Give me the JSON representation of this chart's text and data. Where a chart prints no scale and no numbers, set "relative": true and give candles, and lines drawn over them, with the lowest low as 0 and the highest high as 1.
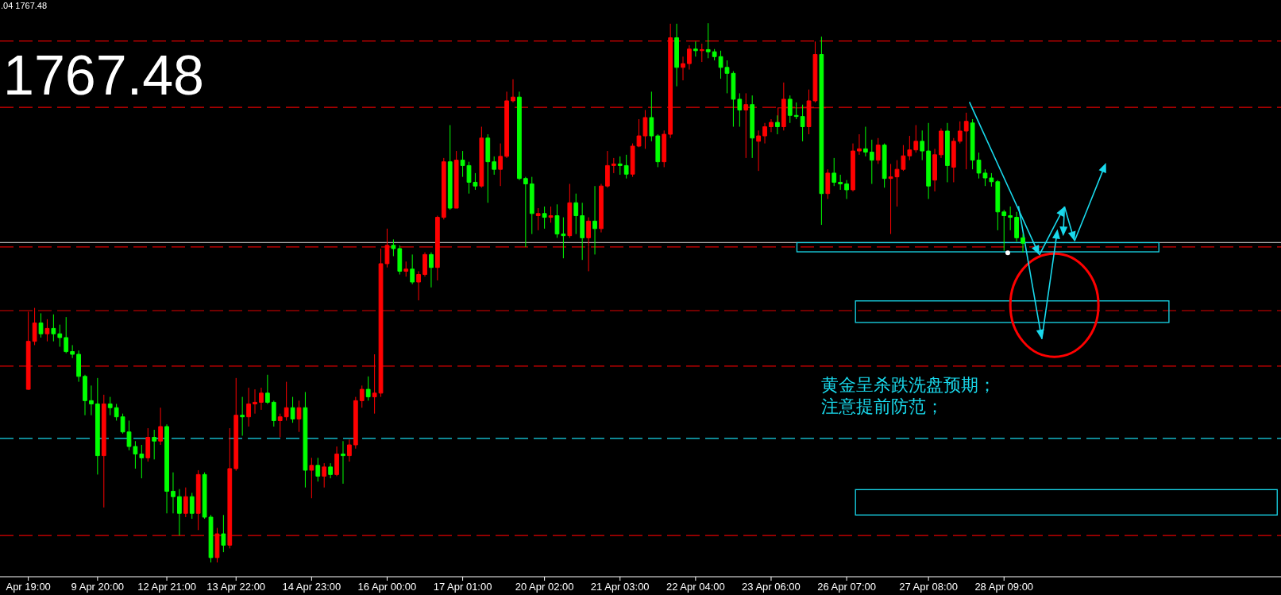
{
  "chart_data": {
    "type": "candlestick",
    "relative": true,
    "categories": [
      "Apr 19:00",
      null,
      null,
      null,
      null,
      null,
      null,
      null,
      null,
      null,
      null,
      "9 Apr 20:00",
      null,
      null,
      null,
      null,
      null,
      null,
      null,
      null,
      null,
      null,
      "12 Apr 21:00",
      null,
      null,
      null,
      null,
      null,
      null,
      null,
      null,
      null,
      null,
      "13 Apr 22:00",
      null,
      null,
      null,
      null,
      null,
      null,
      null,
      null,
      null,
      null,
      null,
      "14 Apr 23:00",
      null,
      null,
      null,
      null,
      null,
      null,
      null,
      null,
      null,
      null,
      null,
      "16 Apr 00:00",
      null,
      null,
      null,
      null,
      null,
      null,
      null,
      null,
      null,
      null,
      null,
      "17 Apr 01:00",
      null,
      null,
      null,
      null,
      null,
      null,
      null,
      null,
      null,
      null,
      null,
      null,
      "20 Apr 02:00",
      null,
      null,
      null,
      null,
      null,
      null,
      null,
      null,
      null,
      null,
      null,
      "21 Apr 03:00",
      null,
      null,
      null,
      null,
      null,
      null,
      null,
      null,
      null,
      null,
      null,
      "22 Apr 04:00",
      null,
      null,
      null,
      null,
      null,
      null,
      null,
      null,
      null,
      null,
      null,
      "23 Apr 06:00",
      null,
      null,
      null,
      null,
      null,
      null,
      null,
      null,
      null,
      null,
      null,
      "26 Apr 07:00",
      null,
      null,
      null,
      null,
      null,
      null,
      null,
      null,
      null,
      null,
      null,
      null,
      "27 Apr 08:00",
      null,
      null,
      null,
      null,
      null,
      null,
      null,
      null,
      null,
      null,
      null,
      "28 Apr 09:00",
      null,
      null,
      null
    ],
    "ohlc": [
      [
        0.321,
        0.465,
        0.32,
        0.41
      ],
      [
        0.41,
        0.472,
        0.403,
        0.444
      ],
      [
        0.444,
        0.462,
        0.417,
        0.424
      ],
      [
        0.424,
        0.451,
        0.41,
        0.434
      ],
      [
        0.434,
        0.46,
        0.41,
        0.424
      ],
      [
        0.424,
        0.441,
        0.4,
        0.417
      ],
      [
        0.417,
        0.455,
        0.388,
        0.391
      ],
      [
        0.391,
        0.403,
        0.379,
        0.386
      ],
      [
        0.386,
        0.393,
        0.335,
        0.345
      ],
      [
        0.345,
        0.348,
        0.273,
        0.3
      ],
      [
        0.3,
        0.328,
        0.273,
        0.294
      ],
      [
        0.294,
        0.342,
        0.163,
        0.198
      ],
      [
        0.198,
        0.311,
        0.102,
        0.294
      ],
      [
        0.294,
        0.307,
        0.273,
        0.287
      ],
      [
        0.287,
        0.294,
        0.263,
        0.27
      ],
      [
        0.27,
        0.276,
        0.239,
        0.242
      ],
      [
        0.242,
        0.263,
        0.208,
        0.215
      ],
      [
        0.215,
        0.225,
        0.174,
        0.201
      ],
      [
        0.201,
        0.218,
        0.156,
        0.194
      ],
      [
        0.194,
        0.249,
        0.187,
        0.232
      ],
      [
        0.232,
        0.246,
        0.191,
        0.225
      ],
      [
        0.225,
        0.287,
        0.218,
        0.252
      ],
      [
        0.252,
        0.256,
        0.091,
        0.132
      ],
      [
        0.132,
        0.167,
        0.091,
        0.122
      ],
      [
        0.122,
        0.136,
        0.05,
        0.091
      ],
      [
        0.091,
        0.139,
        0.084,
        0.122
      ],
      [
        0.122,
        0.129,
        0.081,
        0.091
      ],
      [
        0.091,
        0.171,
        0.06,
        0.163
      ],
      [
        0.163,
        0.167,
        0.081,
        0.084
      ],
      [
        0.084,
        0.088,
        0.0,
        0.009
      ],
      [
        0.009,
        0.064,
        0.0,
        0.053
      ],
      [
        0.053,
        0.088,
        0.019,
        0.032
      ],
      [
        0.032,
        0.249,
        0.026,
        0.174
      ],
      [
        0.174,
        0.342,
        0.17,
        0.273
      ],
      [
        0.273,
        0.307,
        0.235,
        0.27
      ],
      [
        0.27,
        0.324,
        0.252,
        0.294
      ],
      [
        0.294,
        0.321,
        0.276,
        0.297
      ],
      [
        0.297,
        0.324,
        0.283,
        0.314
      ],
      [
        0.314,
        0.348,
        0.294,
        0.297
      ],
      [
        0.297,
        0.3,
        0.252,
        0.263
      ],
      [
        0.263,
        0.276,
        0.232,
        0.27
      ],
      [
        0.27,
        0.335,
        0.263,
        0.287
      ],
      [
        0.287,
        0.307,
        0.259,
        0.266
      ],
      [
        0.266,
        0.3,
        0.242,
        0.287
      ],
      [
        0.287,
        0.316,
        0.139,
        0.171
      ],
      [
        0.171,
        0.194,
        0.119,
        0.18
      ],
      [
        0.18,
        0.194,
        0.15,
        0.16
      ],
      [
        0.16,
        0.184,
        0.139,
        0.177
      ],
      [
        0.177,
        0.184,
        0.156,
        0.163
      ],
      [
        0.163,
        0.215,
        0.16,
        0.201
      ],
      [
        0.201,
        0.225,
        0.146,
        0.198
      ],
      [
        0.198,
        0.228,
        0.187,
        0.218
      ],
      [
        0.218,
        0.307,
        0.211,
        0.3
      ],
      [
        0.3,
        0.328,
        0.287,
        0.321
      ],
      [
        0.321,
        0.345,
        0.3,
        0.307
      ],
      [
        0.307,
        0.386,
        0.276,
        0.314
      ],
      [
        0.314,
        0.582,
        0.307,
        0.554
      ],
      [
        0.554,
        0.619,
        0.547,
        0.588
      ],
      [
        0.588,
        0.599,
        0.568,
        0.582
      ],
      [
        0.582,
        0.588,
        0.534,
        0.54
      ],
      [
        0.54,
        0.558,
        0.53,
        0.544
      ],
      [
        0.544,
        0.571,
        0.516,
        0.52
      ],
      [
        0.52,
        0.54,
        0.486,
        0.534
      ],
      [
        0.534,
        0.575,
        0.53,
        0.571
      ],
      [
        0.571,
        0.575,
        0.51,
        0.547
      ],
      [
        0.547,
        0.643,
        0.523,
        0.64
      ],
      [
        0.64,
        0.75,
        0.636,
        0.743
      ],
      [
        0.743,
        0.811,
        0.654,
        0.657
      ],
      [
        0.657,
        0.763,
        0.657,
        0.746
      ],
      [
        0.746,
        0.763,
        0.715,
        0.736
      ],
      [
        0.736,
        0.743,
        0.684,
        0.705
      ],
      [
        0.705,
        0.722,
        0.691,
        0.698
      ],
      [
        0.698,
        0.808,
        0.695,
        0.787
      ],
      [
        0.787,
        0.794,
        0.667,
        0.743
      ],
      [
        0.743,
        0.753,
        0.719,
        0.729
      ],
      [
        0.729,
        0.777,
        0.698,
        0.753
      ],
      [
        0.753,
        0.873,
        0.75,
        0.856
      ],
      [
        0.856,
        0.896,
        0.853,
        0.863
      ],
      [
        0.863,
        0.873,
        0.709,
        0.712
      ],
      [
        0.712,
        0.715,
        0.585,
        0.702
      ],
      [
        0.702,
        0.715,
        0.609,
        0.647
      ],
      [
        0.643,
        0.657,
        0.616,
        0.647
      ],
      [
        0.647,
        0.66,
        0.619,
        0.64
      ],
      [
        0.64,
        0.66,
        0.63,
        0.643
      ],
      [
        0.643,
        0.664,
        0.602,
        0.609
      ],
      [
        0.609,
        0.64,
        0.564,
        0.606
      ],
      [
        0.606,
        0.702,
        0.602,
        0.667
      ],
      [
        0.667,
        0.684,
        0.609,
        0.643
      ],
      [
        0.643,
        0.667,
        0.561,
        0.602
      ],
      [
        0.602,
        0.64,
        0.54,
        0.633
      ],
      [
        0.633,
        0.698,
        0.571,
        0.619
      ],
      [
        0.619,
        0.702,
        0.612,
        0.698
      ],
      [
        0.698,
        0.763,
        0.695,
        0.736
      ],
      [
        0.736,
        0.75,
        0.722,
        0.739
      ],
      [
        0.739,
        0.753,
        0.719,
        0.736
      ],
      [
        0.736,
        0.756,
        0.712,
        0.72
      ],
      [
        0.72,
        0.777,
        0.715,
        0.772
      ],
      [
        0.772,
        0.822,
        0.77,
        0.791
      ],
      [
        0.791,
        0.839,
        0.767,
        0.825
      ],
      [
        0.825,
        0.873,
        0.781,
        0.791
      ],
      [
        0.791,
        0.794,
        0.733,
        0.743
      ],
      [
        0.743,
        0.801,
        0.733,
        0.794
      ],
      [
        0.794,
        0.999,
        0.787,
        0.973
      ],
      [
        0.973,
        0.999,
        0.883,
        0.918
      ],
      [
        0.918,
        0.938,
        0.894,
        0.925
      ],
      [
        0.925,
        0.959,
        0.914,
        0.952
      ],
      [
        0.952,
        0.966,
        0.938,
        0.949
      ],
      [
        0.949,
        0.962,
        0.928,
        0.951
      ],
      [
        0.951,
        1.0,
        0.935,
        0.947
      ],
      [
        0.947,
        0.952,
        0.931,
        0.938
      ],
      [
        0.938,
        0.949,
        0.897,
        0.918
      ],
      [
        0.918,
        0.931,
        0.87,
        0.907
      ],
      [
        0.907,
        0.911,
        0.808,
        0.859
      ],
      [
        0.859,
        0.87,
        0.808,
        0.839
      ],
      [
        0.839,
        0.87,
        0.75,
        0.849
      ],
      [
        0.849,
        0.866,
        0.75,
        0.787
      ],
      [
        0.781,
        0.801,
        0.726,
        0.791
      ],
      [
        0.791,
        0.815,
        0.777,
        0.808
      ],
      [
        0.808,
        0.822,
        0.798,
        0.816
      ],
      [
        0.816,
        0.829,
        0.794,
        0.808
      ],
      [
        0.808,
        0.89,
        0.801,
        0.859
      ],
      [
        0.859,
        0.866,
        0.815,
        0.829
      ],
      [
        0.829,
        0.853,
        0.822,
        0.827
      ],
      [
        0.827,
        0.849,
        0.781,
        0.808
      ],
      [
        0.808,
        0.877,
        0.794,
        0.856
      ],
      [
        0.856,
        0.966,
        0.853,
        0.942
      ],
      [
        0.942,
        0.975,
        0.626,
        0.684
      ],
      [
        0.684,
        0.729,
        0.674,
        0.722
      ],
      [
        0.722,
        0.75,
        0.698,
        0.705
      ],
      [
        0.705,
        0.719,
        0.691,
        0.702
      ],
      [
        0.702,
        0.709,
        0.674,
        0.691
      ],
      [
        0.691,
        0.777,
        0.688,
        0.763
      ],
      [
        0.763,
        0.794,
        0.756,
        0.767
      ],
      [
        0.767,
        0.808,
        0.753,
        0.761
      ],
      [
        0.761,
        0.784,
        0.702,
        0.746
      ],
      [
        0.746,
        0.787,
        0.739,
        0.774
      ],
      [
        0.774,
        0.777,
        0.695,
        0.712
      ],
      [
        0.712,
        0.739,
        0.609,
        0.715
      ],
      [
        0.715,
        0.746,
        0.66,
        0.729
      ],
      [
        0.729,
        0.774,
        0.726,
        0.754
      ],
      [
        0.754,
        0.791,
        0.746,
        0.765
      ],
      [
        0.765,
        0.811,
        0.76,
        0.781
      ],
      [
        0.781,
        0.801,
        0.746,
        0.763
      ],
      [
        0.763,
        0.815,
        0.674,
        0.698
      ],
      [
        0.709,
        0.767,
        0.688,
        0.756
      ],
      [
        0.756,
        0.805,
        0.75,
        0.8
      ],
      [
        0.8,
        0.815,
        0.705,
        0.736
      ],
      [
        0.733,
        0.787,
        0.705,
        0.781
      ],
      [
        0.781,
        0.818,
        0.777,
        0.8
      ],
      [
        0.8,
        0.834,
        0.729,
        0.818
      ],
      [
        0.815,
        0.822,
        0.729,
        0.746
      ],
      [
        0.746,
        0.76,
        0.712,
        0.722
      ],
      [
        0.722,
        0.729,
        0.698,
        0.713
      ],
      [
        0.713,
        0.722,
        0.697,
        0.706
      ],
      [
        0.706,
        0.709,
        0.616,
        0.65
      ],
      [
        0.65,
        0.654,
        0.578,
        0.643
      ],
      [
        0.643,
        0.66,
        0.616,
        0.64
      ],
      [
        0.64,
        0.65,
        0.595,
        0.602
      ],
      [
        0.602,
        0.609,
        0.575,
        0.592
      ]
    ],
    "colors": [
      "#ff0000",
      "#ff0000",
      "#00ff00",
      "#ff0000",
      "#00ff00",
      "#00ff00",
      "#00ff00",
      "#00ff00",
      "#00ff00",
      "#00ff00",
      "#00ff00",
      "#00ff00",
      "#ff0000",
      "#00ff00",
      "#00ff00",
      "#00ff00",
      "#00ff00",
      "#00ff00",
      "#00ff00",
      "#ff0000",
      "#00ff00",
      "#ff0000",
      "#00ff00",
      "#00ff00",
      "#00ff00",
      "#ff0000",
      "#00ff00",
      "#ff0000",
      "#00ff00",
      "#00ff00",
      "#ff0000",
      "#00ff00",
      "#ff0000",
      "#ff0000",
      "#00ff00",
      "#ff0000",
      "#ff0000",
      "#ff0000",
      "#00ff00",
      "#00ff00",
      "#ff0000",
      "#ff0000",
      "#00ff00",
      "#ff0000",
      "#00ff00",
      "#ff0000",
      "#00ff00",
      "#ff0000",
      "#00ff00",
      "#ff0000",
      "#00ff00",
      "#ff0000",
      "#ff0000",
      "#ff0000",
      "#00ff00",
      "#ff0000",
      "#ff0000",
      "#ff0000",
      "#00ff00",
      "#00ff00",
      "#ff0000",
      "#00ff00",
      "#ff0000",
      "#ff0000",
      "#00ff00",
      "#ff0000",
      "#ff0000",
      "#00ff00",
      "#ff0000",
      "#00ff00",
      "#00ff00",
      "#00ff00",
      "#ff0000",
      "#00ff00",
      "#00ff00",
      "#ff0000",
      "#ff0000",
      "#ff0000",
      "#00ff00",
      "#00ff00",
      "#00ff00",
      "#ff0000",
      "#00ff00",
      "#ff0000",
      "#00ff00",
      "#00ff00",
      "#ff0000",
      "#00ff00",
      "#00ff00",
      "#ff0000",
      "#00ff00",
      "#ff0000",
      "#ff0000",
      "#ff0000",
      "#00ff00",
      "#00ff00",
      "#ff0000",
      "#ff0000",
      "#ff0000",
      "#00ff00",
      "#00ff00",
      "#ff0000",
      "#ff0000",
      "#00ff00",
      "#ff0000",
      "#ff0000",
      "#00ff00",
      "#ff0000",
      "#00ff00",
      "#00ff00",
      "#00ff00",
      "#00ff00",
      "#00ff00",
      "#00ff00",
      "#ff0000",
      "#00ff00",
      "#ff0000",
      "#ff0000",
      "#ff0000",
      "#00ff00",
      "#ff0000",
      "#00ff00",
      "#00ff00",
      "#00ff00",
      "#ff0000",
      "#ff0000",
      "#00ff00",
      "#ff0000",
      "#00ff00",
      "#00ff00",
      "#00ff00",
      "#ff0000",
      "#ff0000",
      "#00ff00",
      "#00ff00",
      "#ff0000",
      "#00ff00",
      "#ff0000",
      "#ff0000",
      "#ff0000",
      "#ff0000",
      "#ff0000",
      "#00ff00",
      "#00ff00",
      "#ff0000",
      "#ff0000",
      "#00ff00",
      "#ff0000",
      "#ff0000",
      "#ff0000",
      "#00ff00",
      "#00ff00",
      "#00ff00",
      "#00ff00",
      "#00ff00",
      "#00ff00",
      "#00ff00",
      "#00ff00",
      "#00ff00"
    ],
    "ref_lines": [
      {
        "axis": "y",
        "value": 0.967,
        "color": "#e00000",
        "line_style": "dashed"
      },
      {
        "axis": "y",
        "value": 0.844,
        "color": "#e00000",
        "line_style": "dashed"
      },
      {
        "axis": "y",
        "value": 0.593,
        "color": "#b4b4b4",
        "line_style": "solid"
      },
      {
        "axis": "y",
        "value": 0.585,
        "color": "#e00000",
        "line_style": "dashed"
      },
      {
        "axis": "y",
        "value": 0.467,
        "color": "#e00000",
        "line_style": "dashed"
      },
      {
        "axis": "y",
        "value": 0.364,
        "color": "#e00000",
        "line_style": "dashed"
      },
      {
        "axis": "y",
        "value": 0.23,
        "color": "#19d9ec",
        "line_style": "dashed"
      },
      {
        "axis": "y",
        "value": 0.05,
        "color": "#e00000",
        "line_style": "dashed"
      }
    ],
    "annotations": [
      ".04 1767.48",
      "1767.48",
      "黄金呈杀跌洗盘预期；",
      "注意提前防范；"
    ]
  }
}
